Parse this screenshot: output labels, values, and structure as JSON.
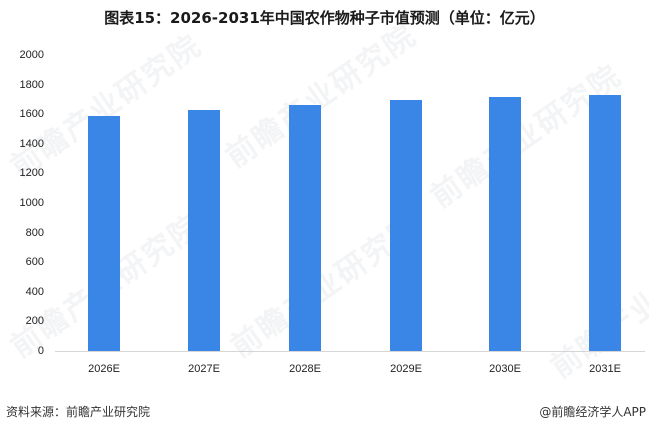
{
  "title": "图表15：2026-2031年中国农作物种子市值预测（单位：亿元）",
  "footer": {
    "source": "资料来源：前瞻产业研究院",
    "credit": "@前瞻经济学人APP"
  },
  "watermark_text": "前瞻产业研究院",
  "colors": {
    "bar": "#3A86E6",
    "axis": "#D6D6D6",
    "text": "#222222"
  },
  "chart_data": {
    "type": "bar",
    "title": "图表15：2026-2031年中国农作物种子市值预测（单位：亿元）",
    "xlabel": "",
    "ylabel": "",
    "categories": [
      "2026E",
      "2027E",
      "2028E",
      "2029E",
      "2030E",
      "2031E"
    ],
    "values": [
      1587,
      1631,
      1664,
      1698,
      1718,
      1732
    ],
    "ylim": [
      0,
      2000
    ],
    "yticks": [
      0,
      200,
      400,
      600,
      800,
      1000,
      1200,
      1400,
      1600,
      1800,
      2000
    ],
    "grid": false,
    "legend": null,
    "source": "资料来源：前瞻产业研究院"
  }
}
